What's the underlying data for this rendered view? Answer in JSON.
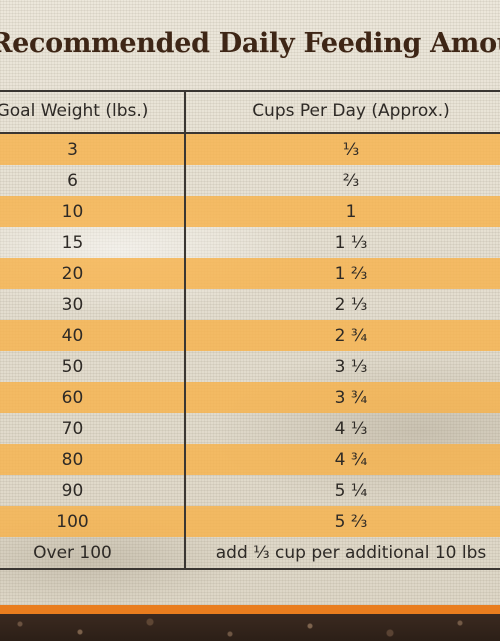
{
  "title": "Recommended Daily Feeding Amounts",
  "table": {
    "headers": {
      "weight": "Goal Weight (lbs.)",
      "cups": "Cups Per Day (Approx.)"
    },
    "rows": [
      {
        "weight": "3",
        "cups": "⅓"
      },
      {
        "weight": "6",
        "cups": "⅔"
      },
      {
        "weight": "10",
        "cups": "1"
      },
      {
        "weight": "15",
        "cups": "1 ⅓"
      },
      {
        "weight": "20",
        "cups": "1 ⅔"
      },
      {
        "weight": "30",
        "cups": "2 ⅓"
      },
      {
        "weight": "40",
        "cups": "2 ¾"
      },
      {
        "weight": "50",
        "cups": "3 ⅓"
      },
      {
        "weight": "60",
        "cups": "3 ¾"
      },
      {
        "weight": "70",
        "cups": "4 ⅓"
      },
      {
        "weight": "80",
        "cups": "4 ¾"
      },
      {
        "weight": "90",
        "cups": "5 ¼"
      },
      {
        "weight": "100",
        "cups": "5 ⅔"
      },
      {
        "weight": "Over 100",
        "cups": "add ⅓ cup per additional 10 lbs"
      }
    ]
  },
  "colors": {
    "title": "#3e2616",
    "stripe": "#f7b24c",
    "rule": "#3a3632",
    "footer_band": "#e97d1e",
    "footer_soil": "#2c1f17"
  }
}
